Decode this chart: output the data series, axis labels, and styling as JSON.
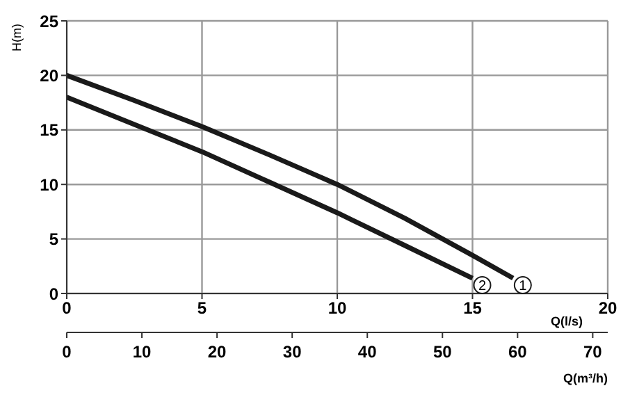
{
  "chart_data": {
    "type": "line",
    "xlabel": "Q(l/s)",
    "ylabel": "H(m)",
    "x2label": "Q(m³/h)",
    "xlim": [
      0,
      20
    ],
    "xticks": [
      0,
      5,
      10,
      15,
      20
    ],
    "ylim": [
      0,
      25
    ],
    "yticks": [
      0,
      5,
      10,
      15,
      20,
      25
    ],
    "x2lim": [
      0,
      72
    ],
    "x2ticks": [
      0,
      10,
      20,
      30,
      40,
      50,
      60,
      70
    ],
    "grid": true,
    "marker": "none",
    "line_style": "solid",
    "series": [
      {
        "name": "1",
        "color": "#1a1a1a",
        "x": [
          0,
          2.5,
          5,
          7.5,
          10,
          12.5,
          15,
          16.5
        ],
        "values": [
          20,
          17.7,
          15.3,
          12.7,
          10,
          6.9,
          3.5,
          1.4
        ]
      },
      {
        "name": "2",
        "color": "#1a1a1a",
        "x": [
          0,
          2.5,
          5,
          7.5,
          10,
          12.5,
          15
        ],
        "values": [
          18,
          15.5,
          13,
          10.2,
          7.4,
          4.4,
          1.4
        ]
      }
    ]
  }
}
